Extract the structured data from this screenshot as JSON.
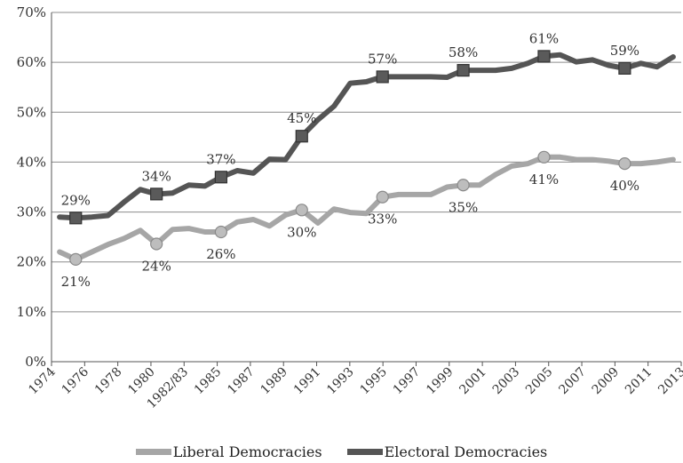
{
  "chart_data": {
    "type": "line",
    "title": "",
    "xlabel": "",
    "ylabel": "",
    "ylim": [
      0,
      70
    ],
    "grid": "horizontal",
    "legend_placement": "bottom-center",
    "y_ticks": [
      "0%",
      "10%",
      "20%",
      "30%",
      "40%",
      "50%",
      "60%",
      "70%"
    ],
    "x_ticks": [
      "1974",
      "1976",
      "1978",
      "1980",
      "1982/83",
      "1985",
      "1987",
      "1989",
      "1991",
      "1993",
      "1995",
      "1997",
      "1999",
      "2001",
      "2003",
      "2005",
      "2007",
      "2009",
      "2011",
      "2013"
    ],
    "series": [
      {
        "name": "Liberal Democracies",
        "color": "#a6a6a6",
        "values": [
          22,
          20.5,
          22,
          23.5,
          24.7,
          26.3,
          23.6,
          26.5,
          26.7,
          26,
          26,
          28,
          28.5,
          27.2,
          29.4,
          30.4,
          27.8,
          30.6,
          29.9,
          29.7,
          33,
          33.5,
          33.5,
          33.5,
          35,
          35.4,
          35.4,
          37.5,
          39.2,
          39.7,
          41,
          41,
          40.5,
          40.5,
          40.2,
          39.7,
          39.7,
          40,
          40.5
        ],
        "markers": [
          {
            "index": 1,
            "label": "21%"
          },
          {
            "index": 6,
            "label": "24%"
          },
          {
            "index": 10,
            "label": "26%"
          },
          {
            "index": 15,
            "label": "30%"
          },
          {
            "index": 20,
            "label": "33%"
          },
          {
            "index": 25,
            "label": "35%"
          },
          {
            "index": 30,
            "label": "41%"
          },
          {
            "index": 35,
            "label": "40%"
          }
        ]
      },
      {
        "name": "Electoral Democracies",
        "color": "#555555",
        "values": [
          29,
          28.8,
          29,
          29.3,
          32,
          34.5,
          33.6,
          33.8,
          35.4,
          35.2,
          37,
          38.3,
          37.8,
          40.6,
          40.5,
          45.2,
          48.5,
          51.2,
          55.8,
          56.1,
          57.1,
          57.1,
          57.1,
          57.1,
          57,
          58.4,
          58.4,
          58.4,
          58.8,
          59.8,
          61.2,
          61.5,
          60.1,
          60.5,
          59.4,
          58.8,
          59.8,
          59.1,
          61.1
        ],
        "markers": [
          {
            "index": 1,
            "label": "29%"
          },
          {
            "index": 6,
            "label": "34%"
          },
          {
            "index": 10,
            "label": "37%"
          },
          {
            "index": 15,
            "label": "45%"
          },
          {
            "index": 20,
            "label": "57%"
          },
          {
            "index": 25,
            "label": "58%"
          },
          {
            "index": 30,
            "label": "61%"
          },
          {
            "index": 35,
            "label": "59%"
          }
        ]
      }
    ]
  }
}
